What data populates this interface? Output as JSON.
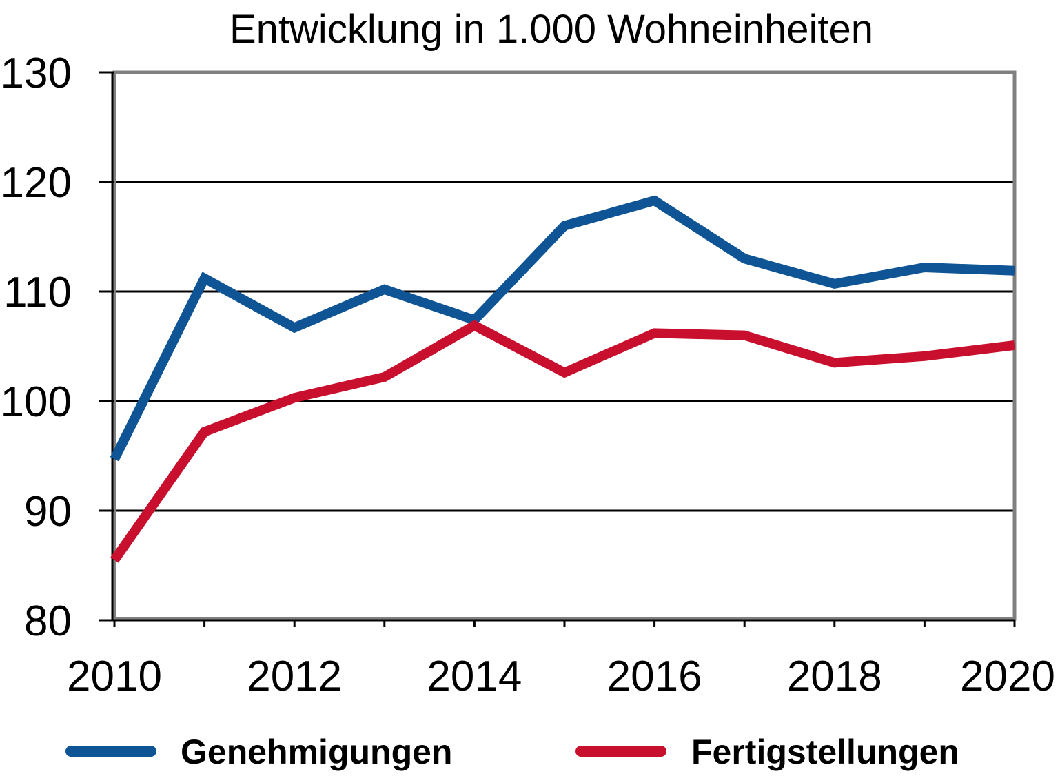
{
  "chart_data": {
    "type": "line",
    "title": "Entwicklung in 1.000 Wohneinheiten",
    "xlabel": "",
    "ylabel": "",
    "x": [
      2010,
      2011,
      2012,
      2013,
      2014,
      2015,
      2016,
      2017,
      2018,
      2019,
      2020
    ],
    "x_tick_labels": [
      "2010",
      "2012",
      "2014",
      "2016",
      "2018",
      "2020"
    ],
    "y_tick_labels": [
      "80",
      "90",
      "100",
      "110",
      "120",
      "130"
    ],
    "xlim": [
      2010,
      2020
    ],
    "ylim": [
      80,
      130
    ],
    "grid": true,
    "legend_position": "bottom",
    "series": [
      {
        "name": "Genehmigungen",
        "color": "#0f5596",
        "values": [
          94.7,
          111.2,
          106.7,
          110.2,
          107.4,
          116.0,
          118.3,
          113.0,
          110.7,
          112.2,
          111.9
        ]
      },
      {
        "name": "Fertigstellungen",
        "color": "#c8102e",
        "values": [
          85.5,
          97.2,
          100.3,
          102.2,
          106.9,
          102.6,
          106.2,
          106.0,
          103.5,
          104.1,
          105.1
        ]
      }
    ]
  }
}
